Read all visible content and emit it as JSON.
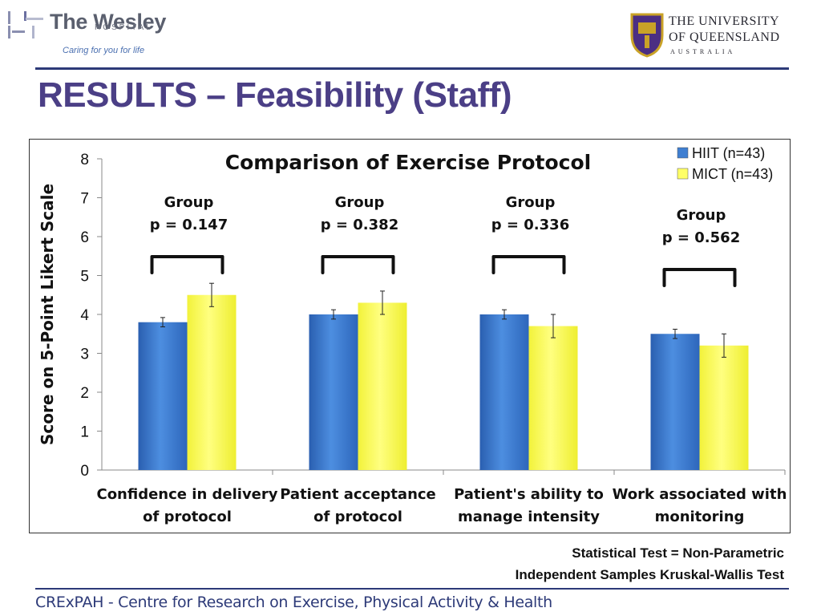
{
  "header": {
    "left_logo": {
      "name": "The Wesley",
      "sub": "HOSPITAL",
      "tagline": "Caring for you for life"
    },
    "right_logo": {
      "line1": "THE UNIVERSITY",
      "line2": "OF QUEENSLAND",
      "line3": "AUSTRALIA"
    }
  },
  "slide": {
    "title": "RESULTS – Feasibility (Staff)"
  },
  "chart_data": {
    "type": "bar",
    "title": "Comparison of Exercise Protocol",
    "xlabel": "",
    "ylabel": "Score on 5-Point Likert Scale",
    "ylim": [
      0,
      8
    ],
    "yticks": [
      "0",
      "1",
      "2",
      "3",
      "4",
      "5",
      "6",
      "7",
      "8"
    ],
    "grid": false,
    "legend_position": "top-right",
    "categories": [
      [
        "Confidence in delivery",
        "of protocol"
      ],
      [
        "Patient acceptance",
        "of protocol"
      ],
      [
        "Patient's ability to",
        "manage intensity"
      ],
      [
        "Work associated with",
        "monitoring"
      ]
    ],
    "series": [
      {
        "name": "HIIT (n=43)",
        "color": "#3f7fd1",
        "values": [
          3.8,
          4.0,
          4.0,
          3.5
        ],
        "errors": [
          0.12,
          0.12,
          0.12,
          0.12
        ]
      },
      {
        "name": "MICT (n=43)",
        "color": "#ffff66",
        "values": [
          4.5,
          4.3,
          3.7,
          3.2
        ],
        "errors": [
          0.3,
          0.3,
          0.3,
          0.3
        ]
      }
    ],
    "annotations": [
      {
        "label": "Group",
        "p": "p = 0.147"
      },
      {
        "label": "Group",
        "p": "p = 0.382"
      },
      {
        "label": "Group",
        "p": "p = 0.336"
      },
      {
        "label": "Group",
        "p": "p = 0.562"
      }
    ]
  },
  "notes": {
    "stat_test_line1": "Statistical Test = Non-Parametric",
    "stat_test_line2": "Independent Samples Kruskal-Wallis Test"
  },
  "footer": {
    "text": "CRExPAH - Centre for Research on Exercise, Physical Activity & Health"
  },
  "colors": {
    "title": "#4b3f86",
    "rule": "#2d3a78",
    "hiit": "#3f7fd1",
    "mict": "#ffff66"
  }
}
